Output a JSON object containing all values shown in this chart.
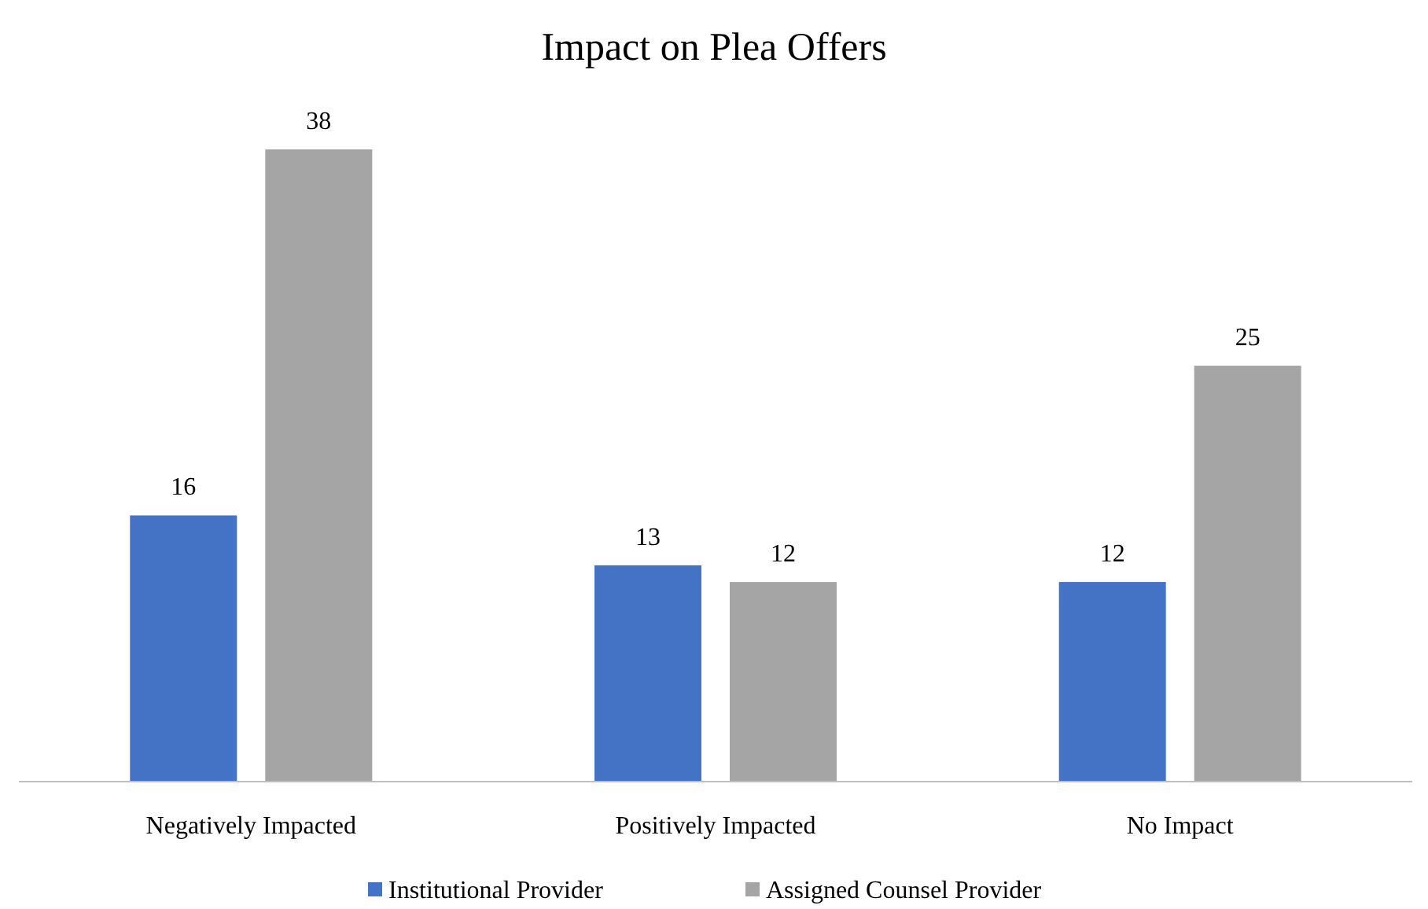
{
  "chart_data": {
    "type": "bar",
    "title": "Impact on Plea Offers",
    "categories": [
      "Negatively Impacted",
      "Positively Impacted",
      "No Impact"
    ],
    "series": [
      {
        "name": "Institutional Provider",
        "color": "#4472c4",
        "values": [
          16,
          13,
          12
        ]
      },
      {
        "name": "Assigned Counsel Provider",
        "color": "#a5a5a5",
        "values": [
          38,
          12,
          25
        ]
      }
    ],
    "data_labels": true,
    "legend": "bottom",
    "grid": false
  }
}
